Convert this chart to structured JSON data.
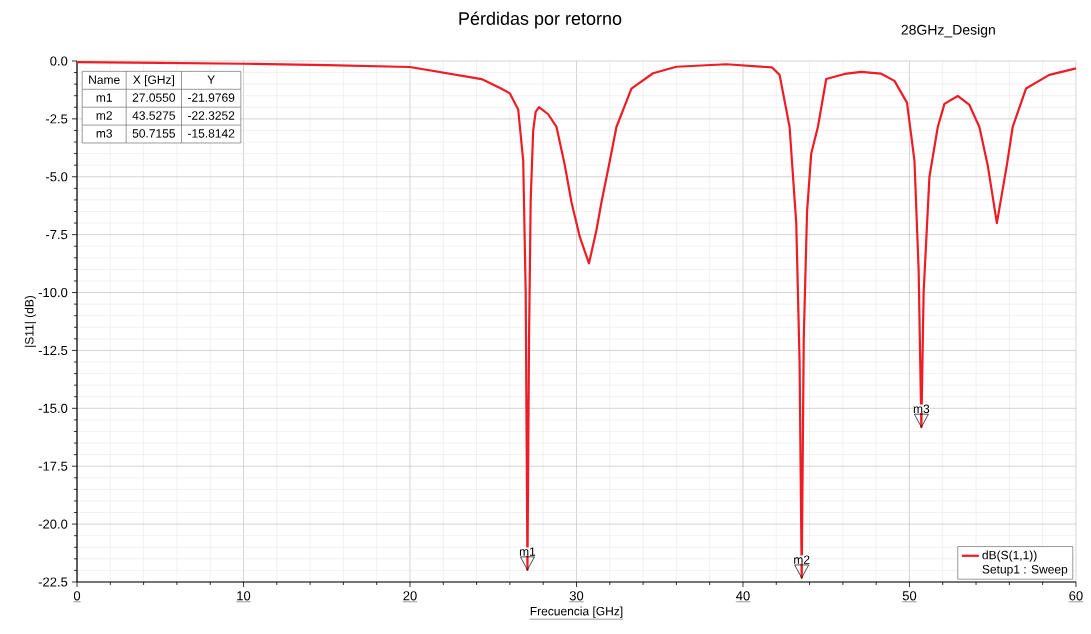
{
  "chart_data": {
    "type": "line",
    "title": "Pérdidas por retorno",
    "subtitle": "28GHz_Design",
    "xlabel": "Frecuencia [GHz]",
    "ylabel": "|S11| (dB)",
    "legend_title": "Setup1 : Sweep",
    "xlim": [
      0,
      60
    ],
    "ylim": [
      -22.5,
      0
    ],
    "xticks": [
      0,
      10,
      20,
      30,
      40,
      50,
      60
    ],
    "yticks": [
      {
        "value": 0,
        "label": "0.0"
      },
      {
        "value": -2.5,
        "label": "-2.5"
      },
      {
        "value": -5,
        "label": "-5.0"
      },
      {
        "value": -7.5,
        "label": "-7.5"
      },
      {
        "value": -10,
        "label": "-10.0"
      },
      {
        "value": -12.5,
        "label": "-12.5"
      },
      {
        "value": -15,
        "label": "-15.0"
      },
      {
        "value": -17.5,
        "label": "-17.5"
      },
      {
        "value": -20,
        "label": "-20.0"
      },
      {
        "value": -22.5,
        "label": "-22.5"
      }
    ],
    "grid": true,
    "legend": "bottom right",
    "marker": "none",
    "line_style": "solid",
    "series": [
      {
        "name": "dB(S(1,1))",
        "color": "#ee1c25",
        "x": [
          0,
          5,
          10,
          15,
          20,
          24.3,
          25.5,
          26,
          26.5,
          26.8,
          26.95,
          27.055,
          27.15,
          27.25,
          27.4,
          27.55,
          27.75,
          28.3,
          28.8,
          29.3,
          29.7,
          30.2,
          30.75,
          31.2,
          31.5,
          31.95,
          32.4,
          33.3,
          34.6,
          36,
          39,
          41.75,
          42.2,
          42.8,
          43.2,
          43.4,
          43.5275,
          43.65,
          43.85,
          44.1,
          44.5,
          45.0,
          46.1,
          47.1,
          48.3,
          49.1,
          49.85,
          50.3,
          50.55,
          50.7155,
          50.85,
          51.2,
          51.7,
          52.1,
          52.9,
          53.6,
          54.2,
          54.7,
          55.25,
          55.85,
          56.2,
          57.0,
          58.4,
          60
        ],
        "values": [
          -0.05,
          -0.08,
          -0.12,
          -0.18,
          -0.26,
          -0.78,
          -1.2,
          -1.4,
          -2.1,
          -4.3,
          -10,
          -21.9769,
          -12,
          -6,
          -3,
          -2.2,
          -1.99,
          -2.3,
          -2.85,
          -4.5,
          -6.1,
          -7.6,
          -8.74,
          -7.3,
          -6.1,
          -4.5,
          -2.85,
          -1.19,
          -0.53,
          -0.25,
          -0.14,
          -0.28,
          -0.6,
          -2.85,
          -7,
          -13,
          -22.3252,
          -12,
          -6.5,
          -4,
          -2.85,
          -0.78,
          -0.56,
          -0.47,
          -0.55,
          -0.86,
          -1.8,
          -4.3,
          -9,
          -15.8142,
          -10,
          -5,
          -2.85,
          -1.85,
          -1.51,
          -1.9,
          -2.85,
          -4.5,
          -7.0,
          -4.5,
          -2.85,
          -1.19,
          -0.6,
          -0.32
        ]
      }
    ],
    "annotations": [
      "Name",
      "X [GHz]",
      "Y",
      "m1",
      "27.0550",
      "-21.9769",
      "m2",
      "43.5275",
      "-22.3252",
      "m3",
      "50.7155",
      "-15.8142",
      {
        "text": "m1",
        "x": 27.055,
        "y": -21.9769
      },
      {
        "text": "m2",
        "x": 43.5275,
        "y": -22.3252
      },
      {
        "text": "m3",
        "x": 50.7155,
        "y": -15.8142
      }
    ]
  }
}
